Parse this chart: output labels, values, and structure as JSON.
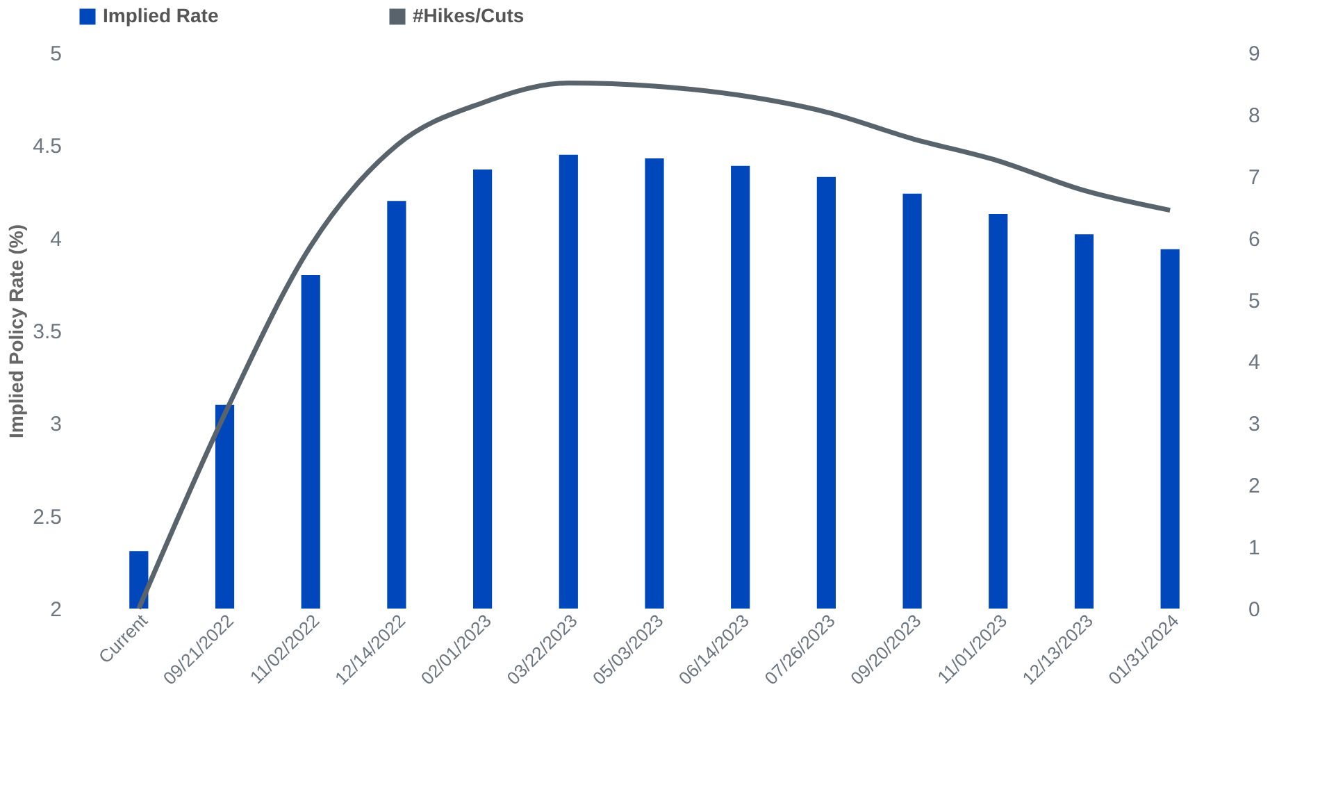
{
  "chart_data": {
    "type": "bar",
    "ylabel": "Implied Policy Rate (%)",
    "categories": [
      "Current",
      "09/21/2022",
      "11/02/2022",
      "12/14/2022",
      "02/01/2023",
      "03/22/2023",
      "05/03/2023",
      "06/14/2023",
      "07/26/2023",
      "09/20/2023",
      "11/01/2023",
      "12/13/2023",
      "01/31/2024"
    ],
    "series": [
      {
        "name": "Implied Rate",
        "color": "#0047bb",
        "values": [
          2.31,
          3.1,
          3.8,
          4.2,
          4.37,
          4.45,
          4.43,
          4.39,
          4.33,
          4.24,
          4.13,
          4.02,
          3.94
        ]
      },
      {
        "name": "#Hikes/Cuts",
        "type": "line",
        "axis": "y2",
        "color": "#59636b",
        "values": [
          0,
          3.15,
          5.87,
          7.5,
          8.19,
          8.51,
          8.46,
          8.31,
          8.04,
          7.61,
          7.25,
          6.77,
          6.45
        ]
      }
    ],
    "ylim": [
      2,
      5
    ],
    "yticks": [
      2,
      2.5,
      3,
      3.5,
      4,
      4.5,
      5
    ],
    "y2lim": [
      0,
      9
    ],
    "y2ticks": [
      0,
      1,
      2,
      3,
      4,
      5,
      6,
      7,
      8,
      9
    ],
    "grid": false,
    "legend": "top",
    "line_style": "solid",
    "marker": "none"
  }
}
